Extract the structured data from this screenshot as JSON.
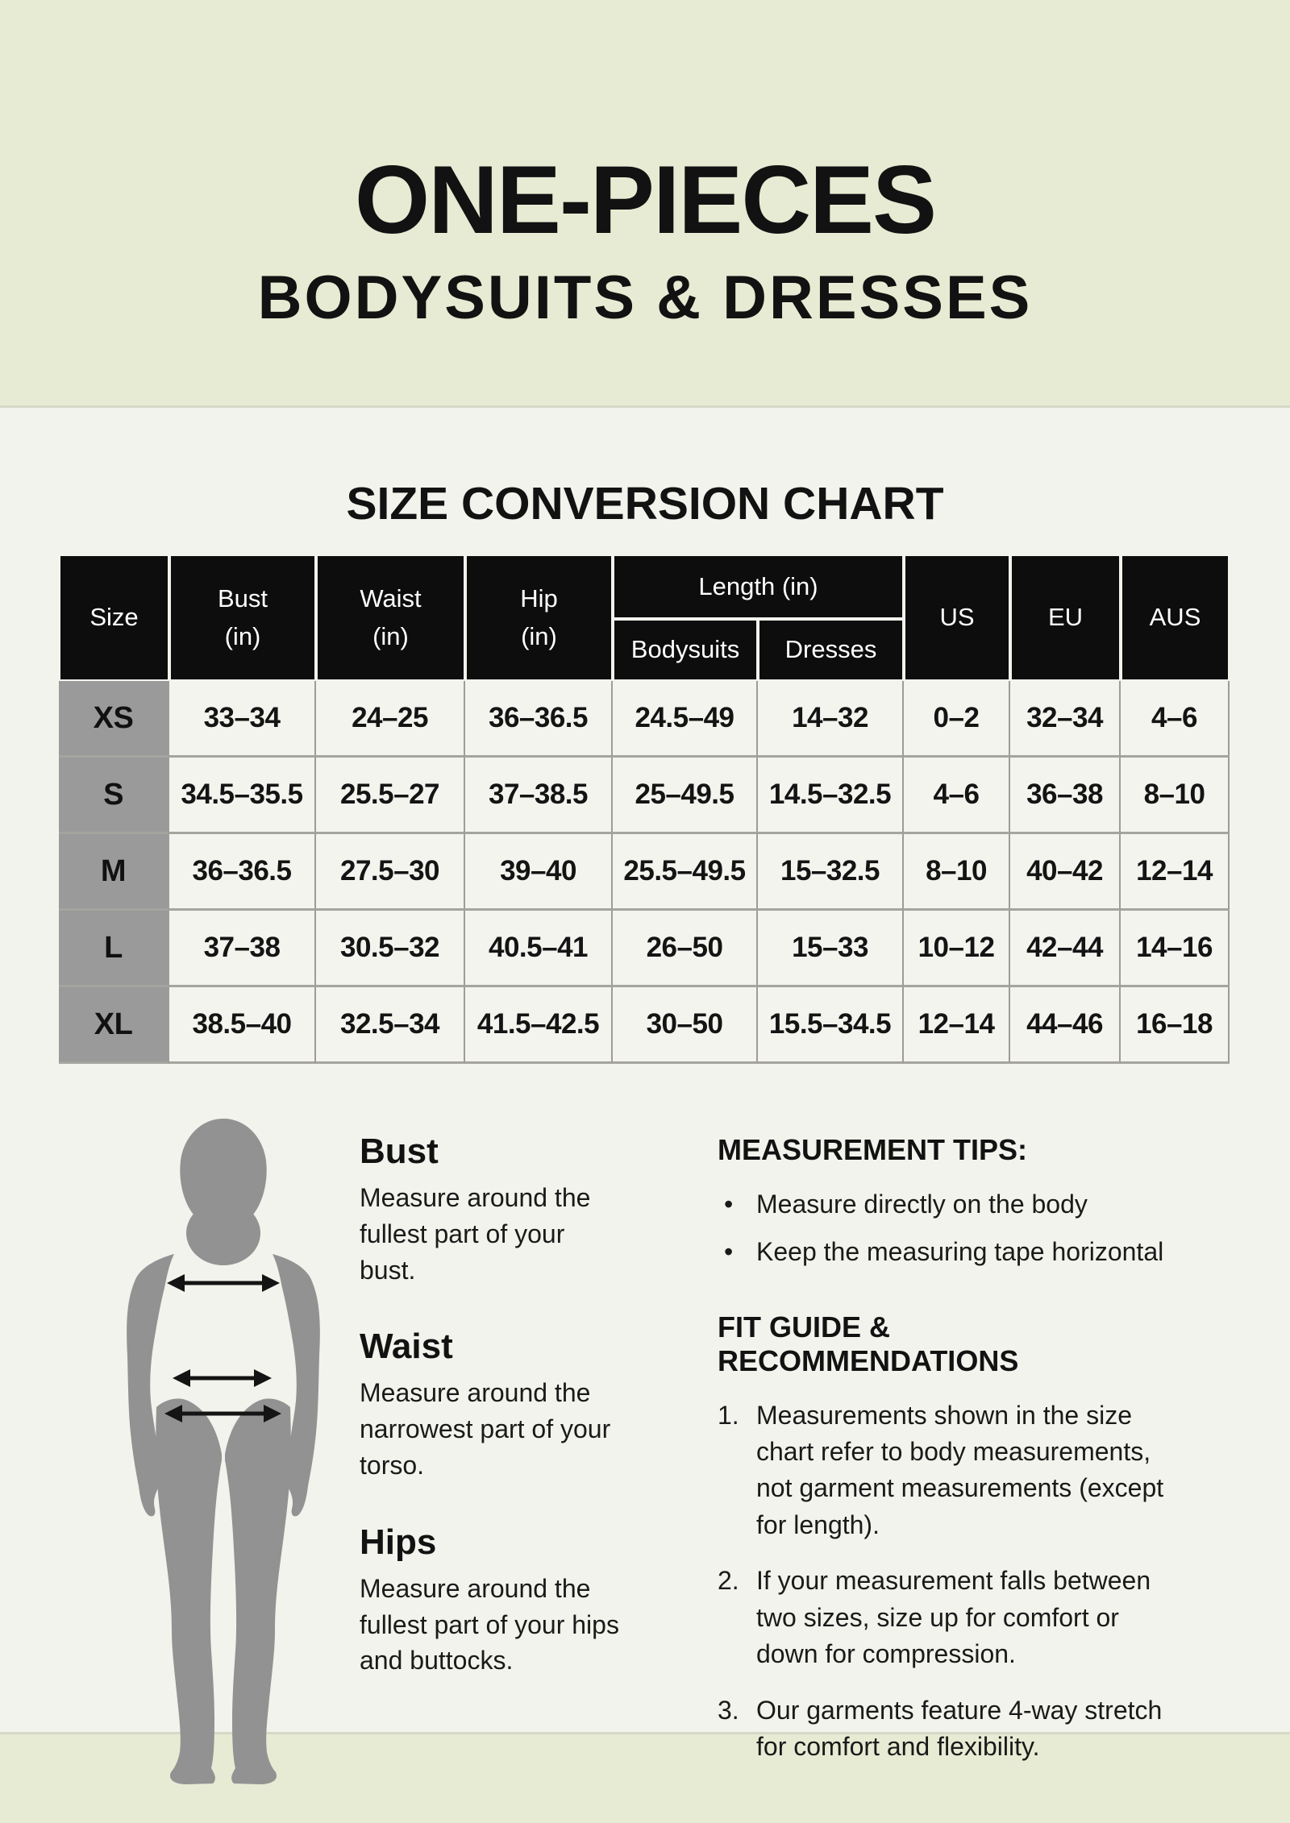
{
  "header": {
    "title": "ONE-PIECES",
    "subtitle": "BODYSUITS & DRESSES"
  },
  "section": {
    "title": "SIZE CONVERSION CHART"
  },
  "table": {
    "header": {
      "size": "Size",
      "bust": "Bust\n(in)",
      "waist": "Waist\n(in)",
      "hip": "Hip\n(in)",
      "length": "Length (in)",
      "bodysuits": "Bodysuits",
      "dresses": "Dresses",
      "us": "US",
      "eu": "EU",
      "aus": "AUS"
    },
    "rows": [
      [
        "XS",
        "33–34",
        "24–25",
        "36–36.5",
        "24.5–49",
        "14–32",
        "0–2",
        "32–34",
        "4–6"
      ],
      [
        "S",
        "34.5–35.5",
        "25.5–27",
        "37–38.5",
        "25–49.5",
        "14.5–32.5",
        "4–6",
        "36–38",
        "8–10"
      ],
      [
        "M",
        "36–36.5",
        "27.5–30",
        "39–40",
        "25.5–49.5",
        "15–32.5",
        "8–10",
        "40–42",
        "12–14"
      ],
      [
        "L",
        "37–38",
        "30.5–32",
        "40.5–41",
        "26–50",
        "15–33",
        "10–12",
        "42–44",
        "14–16"
      ],
      [
        "XL",
        "38.5–40",
        "32.5–34",
        "41.5–42.5",
        "30–50",
        "15.5–34.5",
        "12–14",
        "44–46",
        "16–18"
      ]
    ]
  },
  "guide": {
    "bust": {
      "title": "Bust",
      "text": "Measure around the fullest part of your bust."
    },
    "waist": {
      "title": "Waist",
      "text": "Measure around the narrowest part of your torso."
    },
    "hips": {
      "title": "Hips",
      "text": "Measure around the fullest part of your hips and buttocks."
    }
  },
  "tips": {
    "title": "MEASUREMENT TIPS:",
    "items": [
      "Measure directly on the body",
      "Keep the measuring tape horizontal"
    ]
  },
  "fit_guide": {
    "title": "FIT GUIDE & RECOMMENDATIONS",
    "items": [
      "Measurements shown in the size chart refer to body measurements, not garment measurements (except for length).",
      "If your measurement falls between two sizes, size up for comfort or down for compression.",
      "Our garments feature 4-way stretch for comfort and flexibility."
    ]
  },
  "colors": {
    "band_green": "#e7ebd3",
    "page_bg": "#f2f3ec",
    "table_header_bg": "#0d0d0d",
    "size_column_bg": "#9a9a9a",
    "cell_bg": "#f4f4ef",
    "grid_line": "#a5a49f",
    "silhouette_gray": "#929292",
    "arrow_black": "#141414"
  },
  "figure": {
    "description": "female-body-silhouette-with-measurement-arrows"
  }
}
